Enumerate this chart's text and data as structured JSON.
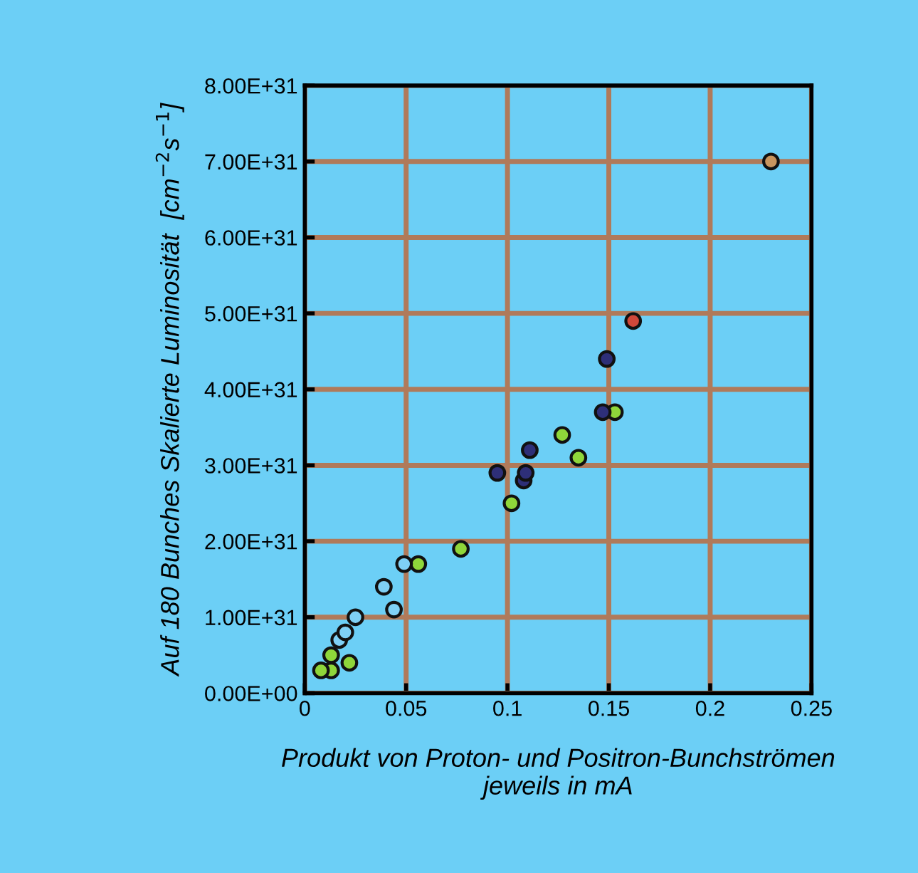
{
  "chart_data": {
    "type": "scatter",
    "xlabel": "Produkt von Proton- und Positron-Bunchströmen\njeweils in mA",
    "ylabel": "Auf 180 Bunches Skalierte Luminosität  [cm$^{−2}$s$^{−1}$]",
    "xlim": [
      0,
      0.25
    ],
    "xticks": [
      0,
      0.05,
      0.1,
      0.15,
      0.2,
      0.25
    ],
    "ylim": [
      0,
      8e+31
    ],
    "yticks": [
      {
        "value": 0,
        "label": "0.00E+00"
      },
      {
        "value": 1e+31,
        "label": "1.00E+31"
      },
      {
        "value": 2e+31,
        "label": "2.00E+31"
      },
      {
        "value": 3e+31,
        "label": "3.00E+31"
      },
      {
        "value": 4e+31,
        "label": "4.00E+31"
      },
      {
        "value": 5e+31,
        "label": "5.00E+31"
      },
      {
        "value": 6e+31,
        "label": "6.00E+31"
      },
      {
        "value": 7e+31,
        "label": "7.00E+31"
      },
      {
        "value": 8e+31,
        "label": "8.00E+31"
      }
    ],
    "grid": true,
    "marker": "circle",
    "series": [
      {
        "color": "#8fd63a",
        "x": [
          0.013,
          0.008,
          0.022,
          0.013,
          0.056,
          0.077,
          0.102,
          0.127,
          0.135,
          0.153
        ],
        "values": [
          3e+30,
          3e+30,
          4e+30,
          5e+30,
          1.7e+31,
          1.9e+31,
          2.5e+31,
          3.4e+31,
          3.1e+31,
          3.7e+31
        ]
      },
      {
        "color": "#7fd0f5",
        "x": [
          0.017,
          0.02,
          0.025,
          0.039,
          0.044,
          0.049
        ],
        "values": [
          7e+30,
          8e+30,
          1e+31,
          1.4e+31,
          1.1e+31,
          1.7e+31
        ]
      },
      {
        "color": "#2e2f78",
        "x": [
          0.095,
          0.108,
          0.109,
          0.111,
          0.147,
          0.149
        ],
        "values": [
          2.9e+31,
          2.8e+31,
          2.9e+31,
          3.2e+31,
          3.7e+31,
          4.4e+31
        ]
      },
      {
        "color": "#d0483a",
        "x": [
          0.162
        ],
        "values": [
          4.9e+31
        ]
      },
      {
        "color": "#c8955e",
        "x": [
          0.23
        ],
        "values": [
          7e+31
        ]
      }
    ]
  }
}
